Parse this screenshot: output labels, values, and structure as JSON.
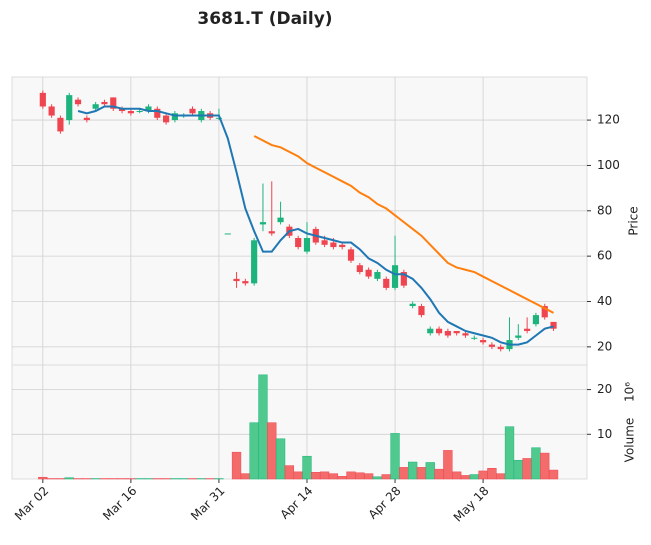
{
  "chart_data": {
    "type": "candlestick",
    "title": "3681.T (Daily)",
    "y_label": "Price",
    "y2_label": "Volume",
    "y2_exponent": "10⁶",
    "categories": [
      "Mar 02",
      null,
      null,
      null,
      null,
      null,
      null,
      null,
      null,
      null,
      "Mar 16",
      null,
      null,
      null,
      null,
      null,
      null,
      null,
      null,
      null,
      "Mar 31",
      null,
      null,
      null,
      null,
      null,
      null,
      null,
      null,
      null,
      "Apr 14",
      null,
      null,
      null,
      null,
      null,
      null,
      null,
      null,
      null,
      "Apr 28",
      null,
      null,
      null,
      null,
      null,
      null,
      null,
      null,
      null,
      "May 18",
      null,
      null,
      null,
      null,
      null,
      null,
      null,
      null
    ],
    "xticks": [
      0,
      10,
      20,
      30,
      40,
      50
    ],
    "xlim": [
      -3.5,
      61.8
    ],
    "open": [
      132,
      126,
      121,
      120,
      129,
      121,
      125,
      128,
      130,
      125,
      124,
      124,
      124,
      125,
      122,
      120,
      122,
      125,
      120,
      123,
      121,
      70,
      50,
      49,
      48,
      74,
      71,
      75,
      73,
      68,
      62,
      72,
      67,
      66,
      65,
      63,
      56,
      54,
      50,
      50,
      46,
      53,
      38,
      38,
      26,
      28,
      27,
      27,
      26,
      24,
      23,
      21,
      20,
      19,
      24,
      28,
      30,
      38,
      31
    ],
    "high": [
      133,
      127,
      122,
      132,
      130,
      122,
      128,
      129,
      130,
      126,
      125,
      125,
      127,
      126,
      123,
      124,
      123,
      126,
      125,
      124,
      125,
      70,
      53,
      50,
      68,
      92,
      93,
      84,
      74,
      69,
      75,
      73,
      69,
      68,
      66,
      64,
      57,
      55,
      54,
      51,
      69,
      54,
      40,
      39,
      29,
      29,
      28,
      27,
      27,
      25,
      24,
      22,
      21,
      33,
      30,
      33,
      35,
      39,
      31
    ],
    "low": [
      125,
      121,
      114,
      118,
      126,
      119,
      124,
      126,
      124,
      123,
      122,
      123,
      123,
      120,
      118,
      119,
      121,
      122,
      119,
      120,
      120,
      70,
      46,
      47,
      47,
      71,
      69,
      74,
      68,
      63,
      61,
      65,
      64,
      63,
      63,
      57,
      52,
      50,
      49,
      45,
      45,
      46,
      37,
      33,
      25,
      25,
      24,
      25,
      24,
      23,
      21,
      19,
      18,
      18,
      23,
      26,
      29,
      32,
      27
    ],
    "close": [
      126,
      122,
      115,
      131,
      127,
      120,
      127,
      127,
      125,
      124,
      123,
      124,
      126,
      121,
      119,
      123,
      122,
      123,
      124,
      121,
      121,
      70,
      49,
      48,
      67,
      75,
      70,
      77,
      69,
      64,
      68,
      66,
      65,
      64,
      64,
      58,
      53,
      51,
      53,
      46,
      56,
      47,
      39,
      34,
      28,
      26,
      25,
      26,
      25,
      24,
      22,
      20,
      19,
      23,
      25,
      27,
      34,
      33,
      28
    ],
    "volume": [
      0.4,
      0.1,
      0.1,
      0.3,
      0.1,
      0.1,
      0.1,
      0.1,
      0.1,
      0.1,
      0.1,
      0.1,
      0.1,
      0.1,
      0.1,
      0.1,
      0.1,
      0.1,
      0.1,
      0.1,
      0.1,
      0,
      6.0,
      1.2,
      12.6,
      23.3,
      12.6,
      9.0,
      3.0,
      1.6,
      5.1,
      1.5,
      1.6,
      1.2,
      0.6,
      1.6,
      1.4,
      1.2,
      0.5,
      1.0,
      10.2,
      2.6,
      3.8,
      2.6,
      3.7,
      2.2,
      6.4,
      1.6,
      0.8,
      1.0,
      1.8,
      2.4,
      1.2,
      11.7,
      4.2,
      4.6,
      7.0,
      5.8,
      2.0
    ],
    "series": [
      {
        "color": "#1f77b4",
        "values": [
          null,
          null,
          null,
          null,
          124,
          123,
          124,
          126,
          126,
          125,
          125,
          125,
          124,
          124,
          123,
          122,
          122,
          122,
          122,
          122,
          122,
          112,
          97,
          81,
          71,
          62,
          62,
          67,
          71,
          72,
          70,
          69,
          68,
          67,
          66,
          66,
          63,
          59,
          57,
          54,
          52,
          52,
          50,
          46,
          41,
          35,
          31,
          29,
          27,
          26,
          25,
          24,
          22,
          21,
          21,
          22,
          25,
          28,
          29
        ]
      },
      {
        "color": "#ff7f0e",
        "values": [
          null,
          null,
          null,
          null,
          null,
          null,
          null,
          null,
          null,
          null,
          null,
          null,
          null,
          null,
          null,
          null,
          null,
          null,
          null,
          null,
          null,
          null,
          null,
          null,
          113,
          111,
          109,
          108,
          106,
          104,
          101,
          99,
          97,
          95,
          93,
          91,
          88,
          86,
          83,
          81,
          78,
          75,
          72,
          69,
          65,
          61,
          57,
          55,
          54,
          53,
          51,
          49,
          47,
          45,
          43,
          41,
          39,
          37,
          35
        ]
      }
    ],
    "up_color": "#1db37d",
    "down_color": "#ef4550",
    "volume_up_color": "#4fc98d",
    "volume_down_color": "#f36b6b",
    "ylim": [
      12,
      139
    ],
    "yticks": [
      20,
      40,
      60,
      80,
      100,
      120
    ],
    "y2lim": [
      0,
      25.5
    ],
    "y2ticks": [
      10,
      20
    ],
    "grid": true
  }
}
